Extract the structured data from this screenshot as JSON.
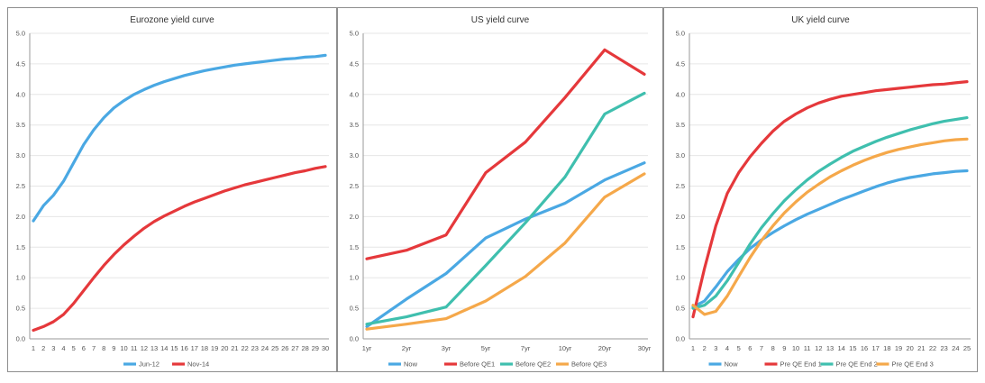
{
  "chart_data": [
    {
      "type": "line",
      "title": "Eurozone yield curve",
      "xlabel": "",
      "ylabel": "",
      "ylim": [
        0,
        5
      ],
      "yticks": [
        "0.0",
        "0.5",
        "1.0",
        "1.5",
        "2.0",
        "2.5",
        "3.0",
        "3.5",
        "4.0",
        "4.5",
        "5.0"
      ],
      "x": [
        1,
        2,
        3,
        4,
        5,
        6,
        7,
        8,
        9,
        10,
        11,
        12,
        13,
        14,
        15,
        16,
        17,
        18,
        19,
        20,
        21,
        22,
        23,
        24,
        25,
        26,
        27,
        28,
        29,
        30
      ],
      "xticklabels": [
        "1",
        "2",
        "3",
        "4",
        "5",
        "6",
        "7",
        "8",
        "9",
        "10",
        "11",
        "12",
        "13",
        "14",
        "15",
        "16",
        "17",
        "18",
        "19",
        "20",
        "21",
        "22",
        "23",
        "24",
        "25",
        "26",
        "27",
        "28",
        "29",
        "30"
      ],
      "grid": true,
      "legend": "bottom",
      "series": [
        {
          "name": "Jun-12",
          "color": "#4aa8e3",
          "values": [
            1.93,
            2.18,
            2.35,
            2.58,
            2.88,
            3.18,
            3.42,
            3.62,
            3.78,
            3.9,
            4.0,
            4.08,
            4.15,
            4.21,
            4.26,
            4.31,
            4.35,
            4.39,
            4.42,
            4.45,
            4.48,
            4.5,
            4.52,
            4.54,
            4.56,
            4.58,
            4.59,
            4.61,
            4.62,
            4.64
          ]
        },
        {
          "name": "Nov-14",
          "color": "#e5383b",
          "values": [
            0.14,
            0.2,
            0.28,
            0.4,
            0.58,
            0.79,
            1.0,
            1.2,
            1.38,
            1.54,
            1.68,
            1.81,
            1.92,
            2.01,
            2.09,
            2.17,
            2.24,
            2.3,
            2.36,
            2.42,
            2.47,
            2.52,
            2.56,
            2.6,
            2.64,
            2.68,
            2.72,
            2.75,
            2.79,
            2.82
          ]
        }
      ]
    },
    {
      "type": "line",
      "title": "US yield curve",
      "xlabel": "",
      "ylabel": "",
      "ylim": [
        0,
        5
      ],
      "yticks": [
        "0.0",
        "0.5",
        "1.0",
        "1.5",
        "2.0",
        "2.5",
        "3.0",
        "3.5",
        "4.0",
        "4.5",
        "5.0"
      ],
      "categories": [
        "1yr",
        "2yr",
        "3yr",
        "5yr",
        "7yr",
        "10yr",
        "20yr",
        "30yr"
      ],
      "grid": true,
      "legend": "bottom",
      "series": [
        {
          "name": "Now",
          "color": "#4aa8e3",
          "values": [
            0.2,
            0.65,
            1.07,
            1.65,
            1.96,
            2.22,
            2.6,
            2.88
          ]
        },
        {
          "name": "Before QE1",
          "color": "#e5383b",
          "values": [
            1.31,
            1.45,
            1.7,
            2.72,
            3.22,
            3.95,
            4.73,
            4.33
          ]
        },
        {
          "name": "Before QE2",
          "color": "#3fbfae",
          "values": [
            0.24,
            0.36,
            0.52,
            1.2,
            1.9,
            2.65,
            3.68,
            4.02
          ]
        },
        {
          "name": "Before QE3",
          "color": "#f5a84a",
          "values": [
            0.16,
            0.24,
            0.33,
            0.62,
            1.02,
            1.57,
            2.32,
            2.7
          ]
        }
      ]
    },
    {
      "type": "line",
      "title": "UK yield curve",
      "xlabel": "",
      "ylabel": "",
      "ylim": [
        0,
        5
      ],
      "yticks": [
        "0.0",
        "0.5",
        "1.0",
        "1.5",
        "2.0",
        "2.5",
        "3.0",
        "3.5",
        "4.0",
        "4.5",
        "5.0"
      ],
      "x": [
        1,
        2,
        3,
        4,
        5,
        6,
        7,
        8,
        9,
        10,
        11,
        12,
        13,
        14,
        15,
        16,
        17,
        18,
        19,
        20,
        21,
        22,
        23,
        24,
        25
      ],
      "xticklabels": [
        "1",
        "2",
        "3",
        "4",
        "5",
        "6",
        "7",
        "8",
        "9",
        "10",
        "11",
        "12",
        "13",
        "14",
        "15",
        "16",
        "17",
        "18",
        "19",
        "20",
        "21",
        "22",
        "23",
        "24",
        "25"
      ],
      "grid": true,
      "legend": "bottom",
      "series": [
        {
          "name": "Now",
          "color": "#4aa8e3",
          "values": [
            0.52,
            0.62,
            0.85,
            1.1,
            1.3,
            1.48,
            1.62,
            1.74,
            1.85,
            1.95,
            2.04,
            2.12,
            2.2,
            2.28,
            2.35,
            2.42,
            2.49,
            2.55,
            2.6,
            2.64,
            2.67,
            2.7,
            2.72,
            2.74,
            2.75
          ]
        },
        {
          "name": "Pre QE End 1",
          "color": "#e5383b",
          "values": [
            0.36,
            1.15,
            1.85,
            2.38,
            2.72,
            2.98,
            3.2,
            3.4,
            3.56,
            3.68,
            3.78,
            3.86,
            3.92,
            3.97,
            4.0,
            4.03,
            4.06,
            4.08,
            4.1,
            4.12,
            4.14,
            4.16,
            4.17,
            4.19,
            4.21
          ]
        },
        {
          "name": "Pre QE End 2",
          "color": "#3fbfae",
          "values": [
            0.5,
            0.55,
            0.7,
            0.95,
            1.25,
            1.55,
            1.82,
            2.05,
            2.26,
            2.44,
            2.6,
            2.74,
            2.86,
            2.97,
            3.07,
            3.15,
            3.23,
            3.3,
            3.36,
            3.42,
            3.47,
            3.52,
            3.56,
            3.59,
            3.62
          ]
        },
        {
          "name": "Pre QE End 3",
          "color": "#f5a84a",
          "values": [
            0.55,
            0.4,
            0.45,
            0.7,
            1.02,
            1.33,
            1.61,
            1.85,
            2.06,
            2.24,
            2.4,
            2.53,
            2.65,
            2.75,
            2.84,
            2.92,
            2.99,
            3.05,
            3.1,
            3.14,
            3.18,
            3.21,
            3.24,
            3.26,
            3.27
          ]
        }
      ]
    }
  ]
}
